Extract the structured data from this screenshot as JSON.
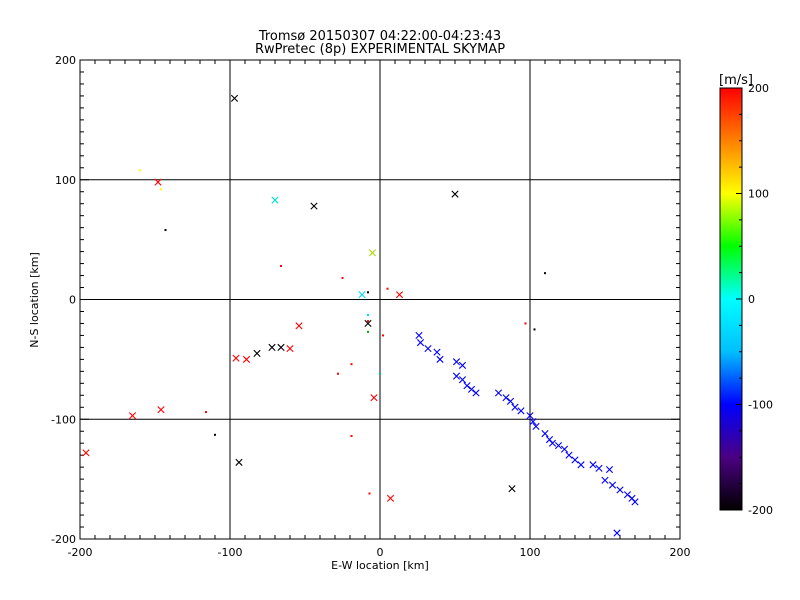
{
  "chart_data": {
    "type": "scatter",
    "title": "Tromsø 20150307 04:22:00-04:23:43",
    "subtitle": "RwPretec (8p) EXPERIMENTAL SKYMAP",
    "xlabel": "E-W location [km]",
    "ylabel": "N-S location [km]",
    "xlim": [
      -200,
      200
    ],
    "ylim": [
      -200,
      200
    ],
    "xticks": [
      -200,
      -100,
      0,
      100,
      200
    ],
    "yticks": [
      -200,
      -100,
      0,
      100,
      200
    ],
    "grid": true,
    "colorbar": {
      "label": "[m/s]",
      "range": [
        -200,
        200
      ],
      "ticks": [
        200,
        100,
        0,
        -100,
        -200
      ],
      "stops": [
        "#000000",
        "#4b0082",
        "#0000ff",
        "#00bfff",
        "#00ffff",
        "#00ff00",
        "#ffff00",
        "#ff8000",
        "#ff0000"
      ]
    },
    "points": [
      {
        "x": -97,
        "y": 168,
        "color": "#000000",
        "mark": "x"
      },
      {
        "x": -160,
        "y": 108,
        "color": "#ffff00",
        "mark": "dot"
      },
      {
        "x": -148,
        "y": 98,
        "color": "#ff0000",
        "mark": "x"
      },
      {
        "x": -146,
        "y": 92,
        "color": "#ffff00",
        "mark": "dot"
      },
      {
        "x": -143,
        "y": 58,
        "color": "#000000",
        "mark": "dot"
      },
      {
        "x": -70,
        "y": 83,
        "color": "#00dddd",
        "mark": "x"
      },
      {
        "x": -44,
        "y": 78,
        "color": "#000000",
        "mark": "x"
      },
      {
        "x": 50,
        "y": 88,
        "color": "#000000",
        "mark": "x"
      },
      {
        "x": -5,
        "y": 39,
        "color": "#aadd00",
        "mark": "x"
      },
      {
        "x": -66,
        "y": 28,
        "color": "#ff0000",
        "mark": "dot"
      },
      {
        "x": -25,
        "y": 18,
        "color": "#ff0000",
        "mark": "dot"
      },
      {
        "x": 110,
        "y": 22,
        "color": "#000000",
        "mark": "dot"
      },
      {
        "x": 5,
        "y": 9,
        "color": "#ff0000",
        "mark": "dot"
      },
      {
        "x": -8,
        "y": 6,
        "color": "#000000",
        "mark": "dot"
      },
      {
        "x": -12,
        "y": 4,
        "color": "#00ddee",
        "mark": "x"
      },
      {
        "x": 13,
        "y": 4,
        "color": "#ff0000",
        "mark": "x"
      },
      {
        "x": -8,
        "y": -13,
        "color": "#00dddd",
        "mark": "dot"
      },
      {
        "x": -8,
        "y": -18,
        "color": "#ff0000",
        "mark": "dot"
      },
      {
        "x": -8,
        "y": -20,
        "color": "#000000",
        "mark": "x"
      },
      {
        "x": -8,
        "y": -27,
        "color": "#00aa00",
        "mark": "dot"
      },
      {
        "x": 2,
        "y": -30,
        "color": "#ff0000",
        "mark": "dot"
      },
      {
        "x": 97,
        "y": -20,
        "color": "#ff0000",
        "mark": "dot"
      },
      {
        "x": 103,
        "y": -25,
        "color": "#000000",
        "mark": "dot"
      },
      {
        "x": -54,
        "y": -22,
        "color": "#ff0000",
        "mark": "x"
      },
      {
        "x": -60,
        "y": -41,
        "color": "#ff0000",
        "mark": "x"
      },
      {
        "x": -66,
        "y": -40,
        "color": "#000000",
        "mark": "x"
      },
      {
        "x": -72,
        "y": -40,
        "color": "#000000",
        "mark": "x"
      },
      {
        "x": -82,
        "y": -45,
        "color": "#000000",
        "mark": "x"
      },
      {
        "x": -89,
        "y": -50,
        "color": "#ff0000",
        "mark": "x"
      },
      {
        "x": -96,
        "y": -49,
        "color": "#ff0000",
        "mark": "x"
      },
      {
        "x": -19,
        "y": -54,
        "color": "#ff0000",
        "mark": "dot"
      },
      {
        "x": -28,
        "y": -62,
        "color": "#ff0000",
        "mark": "dot"
      },
      {
        "x": 0,
        "y": -62,
        "color": "#00cc66",
        "mark": "dot"
      },
      {
        "x": -4,
        "y": -82,
        "color": "#ff0000",
        "mark": "x"
      },
      {
        "x": -146,
        "y": -92,
        "color": "#ff0000",
        "mark": "x"
      },
      {
        "x": -165,
        "y": -97,
        "color": "#ff0000",
        "mark": "x"
      },
      {
        "x": -116,
        "y": -94,
        "color": "#ff0000",
        "mark": "dot"
      },
      {
        "x": -110,
        "y": -113,
        "color": "#000000",
        "mark": "dot"
      },
      {
        "x": -19,
        "y": -114,
        "color": "#ff0000",
        "mark": "dot"
      },
      {
        "x": -196,
        "y": -128,
        "color": "#ff0000",
        "mark": "x"
      },
      {
        "x": -94,
        "y": -136,
        "color": "#000000",
        "mark": "x"
      },
      {
        "x": 88,
        "y": -158,
        "color": "#000000",
        "mark": "x"
      },
      {
        "x": -7,
        "y": -162,
        "color": "#ff0000",
        "mark": "dot"
      },
      {
        "x": 7,
        "y": -166,
        "color": "#ff0000",
        "mark": "x"
      },
      {
        "x": 26,
        "y": -30,
        "color": "#0000ff",
        "mark": "x"
      },
      {
        "x": 27,
        "y": -36,
        "color": "#0000ff",
        "mark": "x"
      },
      {
        "x": 32,
        "y": -41,
        "color": "#0000ff",
        "mark": "x"
      },
      {
        "x": 38,
        "y": -44,
        "color": "#0000ff",
        "mark": "x"
      },
      {
        "x": 40,
        "y": -50,
        "color": "#0000ff",
        "mark": "x"
      },
      {
        "x": 51,
        "y": -52,
        "color": "#0000ff",
        "mark": "x"
      },
      {
        "x": 55,
        "y": -55,
        "color": "#0000ff",
        "mark": "x"
      },
      {
        "x": 51,
        "y": -64,
        "color": "#0000ff",
        "mark": "x"
      },
      {
        "x": 55,
        "y": -67,
        "color": "#0000ff",
        "mark": "x"
      },
      {
        "x": 58,
        "y": -72,
        "color": "#0000ff",
        "mark": "x"
      },
      {
        "x": 61,
        "y": -75,
        "color": "#0000ff",
        "mark": "x"
      },
      {
        "x": 64,
        "y": -78,
        "color": "#0000ff",
        "mark": "x"
      },
      {
        "x": 79,
        "y": -78,
        "color": "#0000ff",
        "mark": "x"
      },
      {
        "x": 84,
        "y": -82,
        "color": "#0000ff",
        "mark": "x"
      },
      {
        "x": 87,
        "y": -85,
        "color": "#0000ff",
        "mark": "x"
      },
      {
        "x": 90,
        "y": -90,
        "color": "#0000ff",
        "mark": "x"
      },
      {
        "x": 94,
        "y": -93,
        "color": "#0000ff",
        "mark": "x"
      },
      {
        "x": 100,
        "y": -97,
        "color": "#0000ff",
        "mark": "x"
      },
      {
        "x": 102,
        "y": -102,
        "color": "#0000ff",
        "mark": "x"
      },
      {
        "x": 104,
        "y": -106,
        "color": "#0000ff",
        "mark": "x"
      },
      {
        "x": 110,
        "y": -112,
        "color": "#0000ff",
        "mark": "x"
      },
      {
        "x": 113,
        "y": -117,
        "color": "#0000ff",
        "mark": "x"
      },
      {
        "x": 115,
        "y": -120,
        "color": "#0000ff",
        "mark": "x"
      },
      {
        "x": 119,
        "y": -122,
        "color": "#0000ff",
        "mark": "x"
      },
      {
        "x": 123,
        "y": -125,
        "color": "#0000ff",
        "mark": "x"
      },
      {
        "x": 126,
        "y": -130,
        "color": "#0000ff",
        "mark": "x"
      },
      {
        "x": 130,
        "y": -134,
        "color": "#0000ff",
        "mark": "x"
      },
      {
        "x": 134,
        "y": -138,
        "color": "#0000ff",
        "mark": "x"
      },
      {
        "x": 142,
        "y": -138,
        "color": "#0000ff",
        "mark": "x"
      },
      {
        "x": 146,
        "y": -141,
        "color": "#0000ff",
        "mark": "x"
      },
      {
        "x": 153,
        "y": -142,
        "color": "#0000ff",
        "mark": "x"
      },
      {
        "x": 150,
        "y": -151,
        "color": "#0000ff",
        "mark": "x"
      },
      {
        "x": 155,
        "y": -155,
        "color": "#0000ff",
        "mark": "x"
      },
      {
        "x": 160,
        "y": -159,
        "color": "#0000ff",
        "mark": "x"
      },
      {
        "x": 165,
        "y": -163,
        "color": "#0000ff",
        "mark": "x"
      },
      {
        "x": 168,
        "y": -166,
        "color": "#0000ff",
        "mark": "x"
      },
      {
        "x": 170,
        "y": -169,
        "color": "#0000ff",
        "mark": "x"
      },
      {
        "x": 158,
        "y": -195,
        "color": "#0000ff",
        "mark": "x"
      }
    ]
  }
}
